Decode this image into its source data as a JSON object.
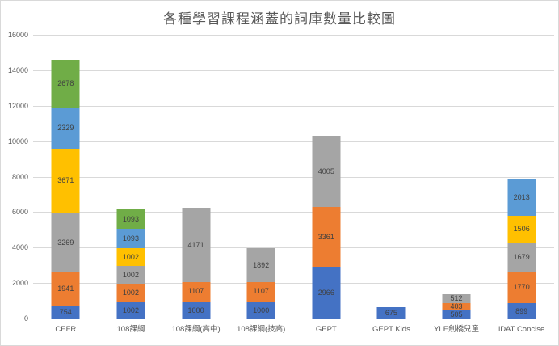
{
  "chart_data": {
    "type": "bar",
    "stacked": true,
    "title": "各種學習課程涵蓋的詞庫數量比較圖",
    "categories": [
      "CEFR",
      "108課綱",
      "108課綱(高中)",
      "108課綱(技高)",
      "GEPT",
      "GEPT Kids",
      "YLE劍橋兒童",
      "iDAT Concise"
    ],
    "series": [
      {
        "name": "segment-dark-blue",
        "color": "#4472C4",
        "values": [
          754,
          1002,
          1000,
          1000,
          2966,
          675,
          505,
          899
        ]
      },
      {
        "name": "segment-orange",
        "color": "#ED7D31",
        "values": [
          1941,
          1002,
          1107,
          1107,
          3361,
          0,
          403,
          1770
        ]
      },
      {
        "name": "segment-gray",
        "color": "#A5A5A5",
        "values": [
          3269,
          1002,
          4171,
          1892,
          4005,
          0,
          512,
          1679
        ]
      },
      {
        "name": "segment-yellow",
        "color": "#FFC000",
        "values": [
          3671,
          1002,
          0,
          0,
          0,
          0,
          0,
          1506
        ]
      },
      {
        "name": "segment-light-blue",
        "color": "#5B9BD5",
        "values": [
          2329,
          1093,
          0,
          0,
          0,
          0,
          0,
          2013
        ]
      },
      {
        "name": "segment-green",
        "color": "#70AD47",
        "values": [
          2678,
          1093,
          0,
          0,
          0,
          0,
          0,
          0
        ]
      }
    ],
    "ylim": [
      0,
      16000
    ],
    "yticks": [
      0,
      2000,
      4000,
      6000,
      8000,
      10000,
      12000,
      14000,
      16000
    ],
    "xlabel": "",
    "ylabel": "",
    "grid": true,
    "legend": "none",
    "data_labels": true
  },
  "style": {
    "background": "#ffffff",
    "frame_border": "#d9d9d9",
    "title_color": "#595959",
    "tick_color": "#595959",
    "gridline_color": "#d9d9d9",
    "axis_line_color": "#bfbfbf",
    "data_label_color": "#404040"
  }
}
